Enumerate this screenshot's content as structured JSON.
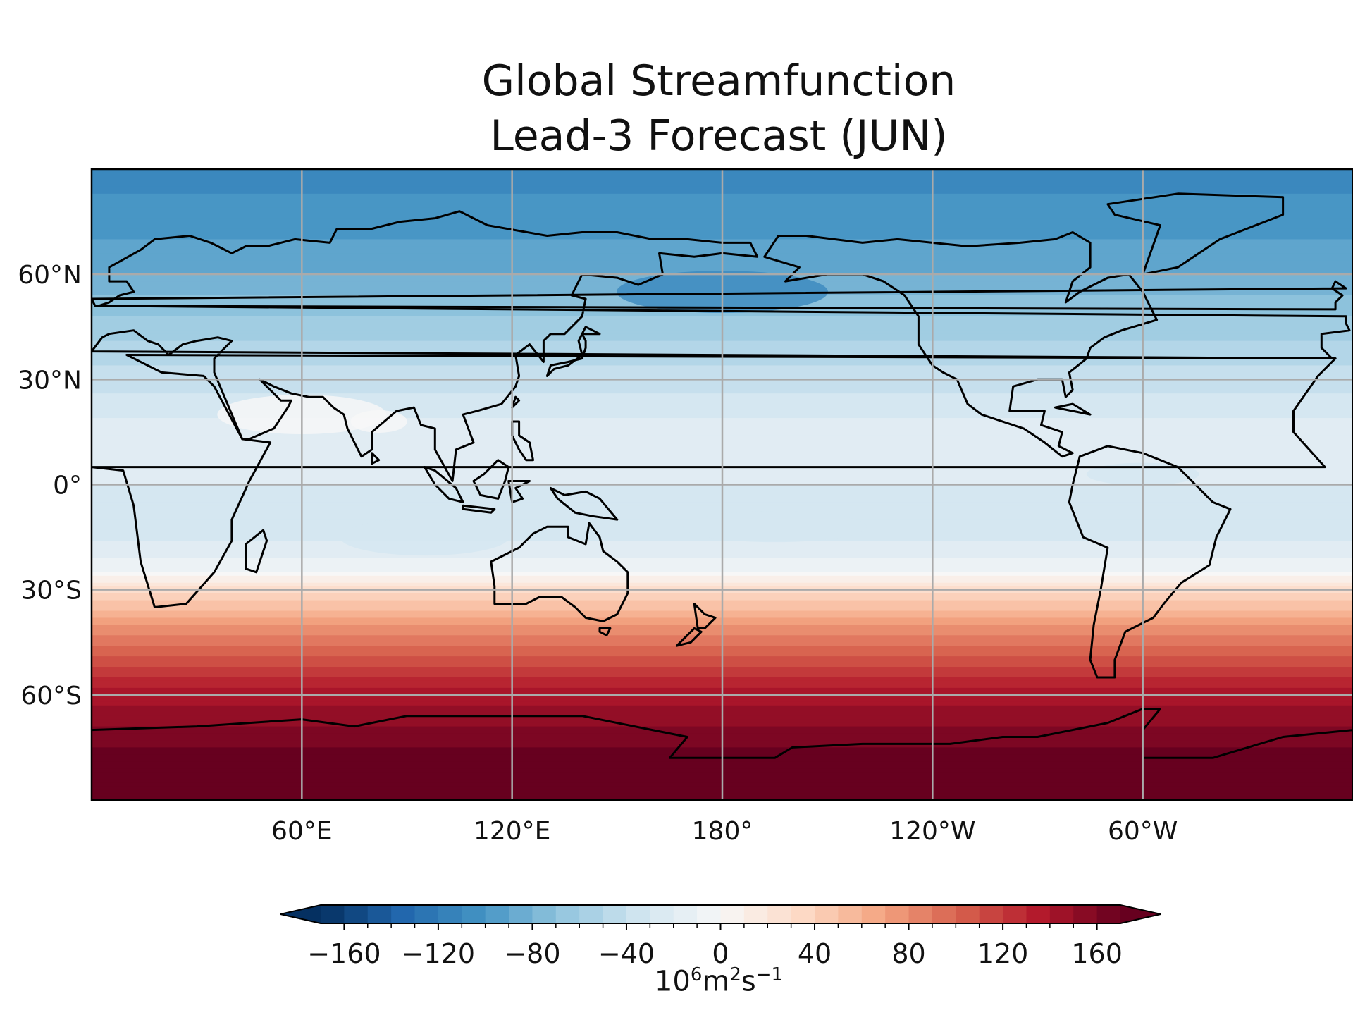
{
  "title": [
    "Global Streamfunction",
    "Lead-3 Forecast (JUN)"
  ],
  "map": {
    "projection": "PlateCarree",
    "central_longitude": 180,
    "lon_range": [
      0,
      360
    ],
    "lat_range": [
      -90,
      90
    ],
    "gridlines": true,
    "coastlines": true,
    "x_ticks": [
      {
        "lon": 60,
        "label": "60°E"
      },
      {
        "lon": 120,
        "label": "120°E"
      },
      {
        "lon": 180,
        "label": "180°"
      },
      {
        "lon": 240,
        "label": "120°W"
      },
      {
        "lon": 300,
        "label": "60°W"
      }
    ],
    "y_ticks": [
      {
        "lat": 60,
        "label": "60°N"
      },
      {
        "lat": 30,
        "label": "30°N"
      },
      {
        "lat": 0,
        "label": "0°"
      },
      {
        "lat": -30,
        "label": "30°S"
      },
      {
        "lat": -60,
        "label": "60°S"
      }
    ]
  },
  "field": {
    "variable": "streamfunction",
    "latitudinal_profile": [
      {
        "lat": 90,
        "value": -110
      },
      {
        "lat": 75,
        "value": -100
      },
      {
        "lat": 60,
        "value": -85
      },
      {
        "lat": 45,
        "value": -60
      },
      {
        "lat": 30,
        "value": -40
      },
      {
        "lat": 15,
        "value": -20
      },
      {
        "lat": 0,
        "value": -25
      },
      {
        "lat": -15,
        "value": -28
      },
      {
        "lat": -25,
        "value": -5
      },
      {
        "lat": -30,
        "value": 30
      },
      {
        "lat": -40,
        "value": 75
      },
      {
        "lat": -50,
        "value": 110
      },
      {
        "lat": -60,
        "value": 140
      },
      {
        "lat": -75,
        "value": 165
      },
      {
        "lat": -90,
        "value": 170
      }
    ]
  },
  "colorbar": {
    "colormap": "RdBu_r",
    "min": -170,
    "max": 170,
    "extend": "both",
    "tick_values": [
      -160,
      -120,
      -80,
      -40,
      0,
      40,
      80,
      120,
      160
    ],
    "tick_labels": [
      "−160",
      "−120",
      "−80",
      "−40",
      "0",
      "40",
      "80",
      "120",
      "160"
    ],
    "unit_parts": {
      "base": "10",
      "exp1": "6",
      "m": "m",
      "exp2": "2",
      "s": "s",
      "exp3": "−1"
    }
  },
  "colors": {
    "colormap_stops": [
      "#053061",
      "#2166ac",
      "#4393c3",
      "#92c5de",
      "#d1e5f0",
      "#f7f7f7",
      "#fddbc7",
      "#f4a582",
      "#d6604d",
      "#b2182b",
      "#67001f"
    ],
    "coastline": "#000000",
    "gridline": "#aaaaaa"
  }
}
